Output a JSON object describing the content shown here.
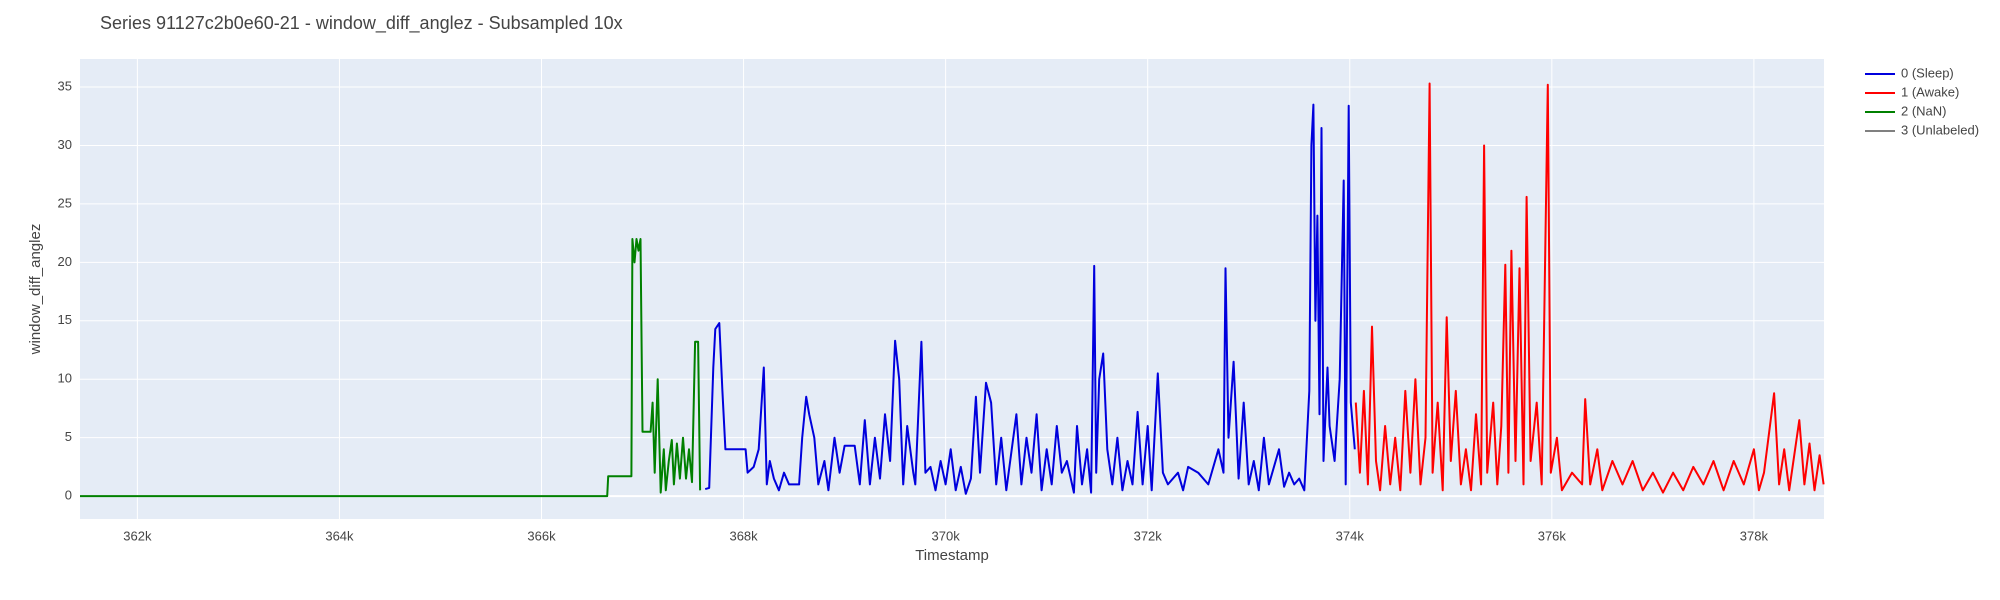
{
  "chart_data": {
    "type": "line",
    "title": "Series 91127c2b0e60-21 - window_diff_anglez - Subsampled 10x",
    "x_label": "Timestamp",
    "y_label": "window_diff_anglez",
    "xlim": [
      361432,
      378694
    ],
    "ylim": [
      -1.96,
      37.4
    ],
    "xticks": [
      {
        "value": 362000,
        "label": "362k"
      },
      {
        "value": 364000,
        "label": "364k"
      },
      {
        "value": 366000,
        "label": "366k"
      },
      {
        "value": 368000,
        "label": "368k"
      },
      {
        "value": 370000,
        "label": "370k"
      },
      {
        "value": 372000,
        "label": "372k"
      },
      {
        "value": 374000,
        "label": "374k"
      },
      {
        "value": 376000,
        "label": "376k"
      },
      {
        "value": 378000,
        "label": "378k"
      }
    ],
    "yticks": [
      0,
      5,
      10,
      15,
      20,
      25,
      30,
      35
    ],
    "grid": true,
    "legend": "outside-right",
    "series": [
      {
        "name": "0 (Sleep)",
        "color": "#0000dd",
        "x": [
          367620,
          367660,
          367700,
          367720,
          367760,
          367790,
          367820,
          367900,
          368020,
          368040,
          368100,
          368150,
          368200,
          368230,
          368260,
          368300,
          368350,
          368400,
          368450,
          368550,
          368580,
          368620,
          368650,
          368700,
          368740,
          368800,
          368840,
          368900,
          368950,
          369000,
          369100,
          369150,
          369200,
          369250,
          369300,
          369350,
          369400,
          369450,
          369500,
          369540,
          369580,
          369620,
          369680,
          369700,
          369760,
          369800,
          369850,
          369900,
          369950,
          370000,
          370050,
          370100,
          370150,
          370200,
          370250,
          370300,
          370340,
          370400,
          370450,
          370500,
          370550,
          370600,
          370700,
          370750,
          370800,
          370850,
          370900,
          370950,
          371000,
          371050,
          371100,
          371150,
          371200,
          371270,
          371300,
          371350,
          371400,
          371440,
          371470,
          371490,
          371520,
          371560,
          371600,
          371650,
          371700,
          371750,
          371800,
          371850,
          371900,
          371950,
          372000,
          372040,
          372100,
          372150,
          372200,
          372300,
          372350,
          372400,
          372500,
          372600,
          372700,
          372750,
          372770,
          372800,
          372850,
          372900,
          372950,
          373000,
          373050,
          373100,
          373150,
          373200,
          373300,
          373350,
          373400,
          373450,
          373500,
          373550,
          373600,
          373620,
          373640,
          373660,
          373680,
          373700,
          373720,
          373740,
          373780,
          373800,
          373850,
          373900,
          373940,
          373960,
          373990,
          374010,
          374050
        ],
        "values": [
          0.6,
          0.7,
          11,
          14.3,
          14.8,
          9,
          4,
          4,
          4,
          2,
          2.5,
          4,
          11,
          1,
          3,
          1.5,
          0.5,
          2,
          1,
          1,
          5,
          8.5,
          7,
          5,
          1,
          3,
          0.5,
          5,
          2,
          4.3,
          4.3,
          1,
          6.5,
          1,
          5,
          1.5,
          7,
          3,
          13.3,
          10,
          1,
          6,
          2,
          1,
          13.2,
          2,
          2.5,
          0.5,
          3,
          1,
          4,
          0.5,
          2.5,
          0.2,
          1.5,
          8.5,
          2,
          9.7,
          8,
          1,
          5,
          0.5,
          7,
          1,
          5,
          2,
          7,
          0.5,
          4,
          1,
          6,
          2,
          3,
          0.3,
          6,
          1,
          4,
          0.3,
          19.7,
          2,
          10,
          12.2,
          4,
          1,
          5,
          0.5,
          3,
          1,
          7.2,
          1,
          6,
          0.5,
          10.5,
          2,
          1,
          2,
          0.5,
          2.5,
          2,
          1,
          4,
          2,
          19.5,
          5,
          11.5,
          1.5,
          8,
          1,
          3,
          0.5,
          5,
          1,
          4,
          0.8,
          2,
          1,
          1.5,
          0.5,
          9,
          30,
          33.5,
          15,
          24,
          7,
          31.5,
          3,
          11,
          6,
          3,
          10,
          27,
          1,
          33.4,
          8,
          4
        ]
      },
      {
        "name": "1 (Awake)",
        "color": "#ff0000",
        "x": [
          374060,
          374100,
          374140,
          374180,
          374220,
          374260,
          374300,
          374350,
          374400,
          374450,
          374500,
          374550,
          374600,
          374650,
          374700,
          374750,
          374790,
          374820,
          374870,
          374920,
          374960,
          375000,
          375050,
          375100,
          375150,
          375200,
          375250,
          375300,
          375330,
          375360,
          375420,
          375460,
          375500,
          375540,
          375570,
          375600,
          375640,
          375680,
          375720,
          375750,
          375790,
          375850,
          375900,
          375960,
          375990,
          376050,
          376100,
          376200,
          376300,
          376330,
          376380,
          376450,
          376500,
          376600,
          376700,
          376800,
          376900,
          377000,
          377100,
          377200,
          377300,
          377400,
          377500,
          377600,
          377700,
          377800,
          377900,
          378000,
          378050,
          378100,
          378200,
          378250,
          378300,
          378350,
          378450,
          378500,
          378550,
          378600,
          378650,
          378690
        ],
        "values": [
          8,
          2,
          9,
          1,
          14.5,
          3,
          0.5,
          6,
          1,
          5,
          0.5,
          9,
          2,
          10,
          1,
          5,
          35.3,
          2,
          8,
          0.5,
          15.3,
          3,
          9,
          1,
          4,
          0.5,
          7,
          1,
          30,
          2,
          8,
          1,
          6,
          19.8,
          2,
          21,
          3,
          19.5,
          1,
          25.6,
          3,
          8,
          1,
          35.2,
          2,
          5,
          0.5,
          2,
          1,
          8.3,
          1,
          4,
          0.5,
          3,
          1,
          3,
          0.5,
          2,
          0.3,
          2,
          0.5,
          2.5,
          1,
          3,
          0.5,
          3,
          1,
          4,
          0.5,
          2,
          8.8,
          1,
          4,
          0.5,
          6.5,
          1,
          4.5,
          0.5,
          3.5,
          1
        ]
      },
      {
        "name": "2 (NaN)",
        "color": "#008000",
        "x": [
          361432,
          366650,
          366660,
          366890,
          366900,
          366920,
          366940,
          366960,
          366980,
          367000,
          367080,
          367100,
          367120,
          367150,
          367180,
          367210,
          367230,
          367260,
          367290,
          367310,
          367340,
          367370,
          367400,
          367430,
          367460,
          367490,
          367520,
          367550,
          367570
        ],
        "values": [
          0,
          0,
          1.7,
          1.7,
          22,
          20,
          22,
          21,
          22,
          5.5,
          5.5,
          8,
          2,
          10,
          0.3,
          4,
          0.5,
          3,
          4.8,
          1,
          4.5,
          1.5,
          5,
          1.5,
          4,
          1.2,
          13.2,
          13.2,
          0.5
        ]
      },
      {
        "name": "3 (Unlabeled)",
        "color": "#808080",
        "x": [],
        "values": []
      }
    ]
  }
}
